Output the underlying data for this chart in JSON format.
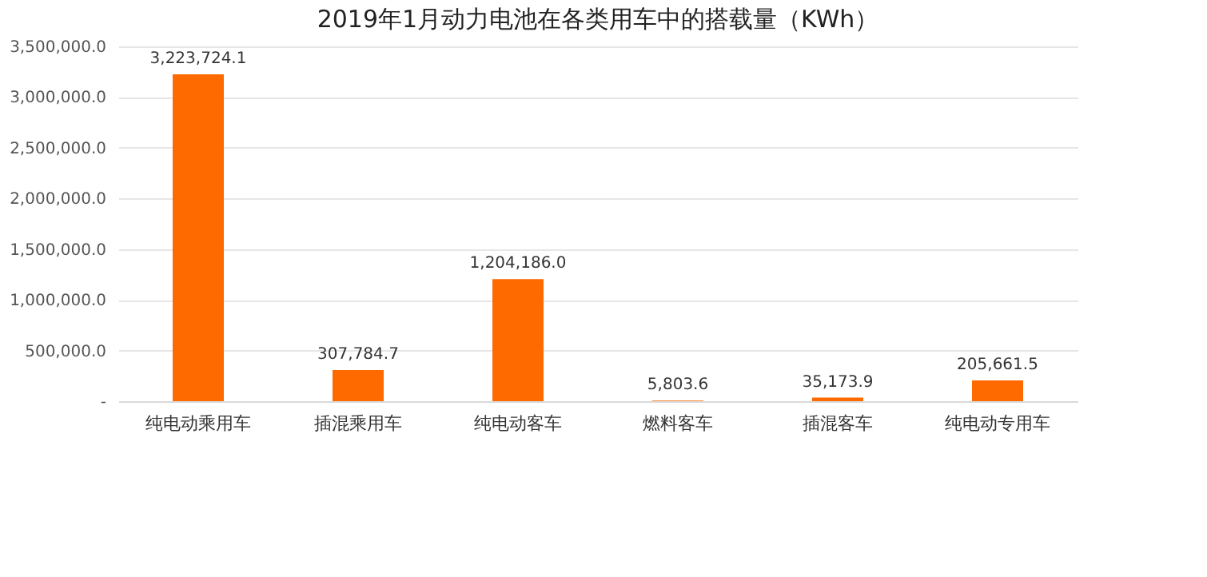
{
  "chart_data": {
    "type": "bar",
    "title": "2019年1月动力电池在各类用车中的搭载量（KWh）",
    "categories": [
      "纯电动乘用车",
      "插混乘用车",
      "纯电动客车",
      "燃料客车",
      "插混客车",
      "纯电动专用车"
    ],
    "values": [
      3223724.1,
      307784.7,
      1204186.0,
      5803.6,
      35173.9,
      205661.5
    ],
    "color": "#ff6a00",
    "value_labels": [
      "3,223,724.1",
      "307,784.7",
      "1,204,186.0",
      "5,803.6",
      "35,173.9",
      "205,661.5"
    ],
    "ylim": [
      0,
      3500000
    ],
    "yticks": [
      {
        "value": 0,
        "label": "-"
      },
      {
        "value": 500000,
        "label": "500,000.0"
      },
      {
        "value": 1000000,
        "label": "1,000,000.0"
      },
      {
        "value": 1500000,
        "label": "1,500,000.0"
      },
      {
        "value": 2000000,
        "label": "2,000,000.0"
      },
      {
        "value": 2500000,
        "label": "2,500,000.0"
      },
      {
        "value": 3000000,
        "label": "3,000,000.0"
      },
      {
        "value": 3500000,
        "label": "3,500,000.0"
      }
    ],
    "grid": "y"
  }
}
